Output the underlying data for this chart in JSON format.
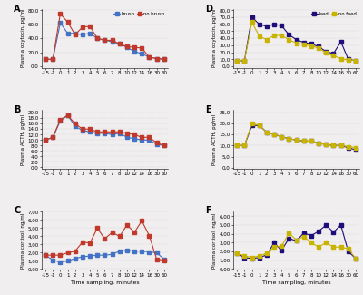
{
  "x_ticks_labels": [
    "-15",
    "-1",
    "0",
    "1",
    "2",
    "3",
    "4",
    "5",
    "6",
    "7",
    "8",
    "10",
    "12",
    "14",
    "16",
    "30",
    "60"
  ],
  "A_brush": [
    10,
    10,
    62,
    47,
    47,
    45,
    47,
    40,
    37,
    35,
    32,
    27,
    21,
    18,
    13,
    11,
    10
  ],
  "A_no_brush": [
    10,
    10,
    75,
    63,
    45,
    56,
    57,
    40,
    37,
    37,
    32,
    28,
    27,
    26,
    13,
    11,
    10
  ],
  "B_brush": [
    10,
    11,
    17,
    19,
    15,
    13.5,
    13,
    12.5,
    12.5,
    12,
    12.5,
    11,
    10.5,
    10,
    10,
    8.5,
    8
  ],
  "B_no_brush": [
    10,
    11,
    17.5,
    19,
    16,
    14,
    14,
    13,
    13,
    13,
    13,
    12.5,
    12,
    11,
    11,
    9,
    8
  ],
  "C_brush": [
    1.7,
    1.1,
    0.85,
    1.0,
    1.3,
    1.5,
    1.6,
    1.7,
    1.7,
    1.8,
    2.2,
    2.3,
    2.2,
    2.2,
    2.1,
    2.0,
    1.2
  ],
  "C_no_brush": [
    1.7,
    1.7,
    1.7,
    2.0,
    2.2,
    3.3,
    3.2,
    5.0,
    3.7,
    4.5,
    4.0,
    5.4,
    4.5,
    5.9,
    4.1,
    1.2,
    1.1
  ],
  "D_feed": [
    8,
    8,
    70,
    60,
    57,
    60,
    58,
    45,
    38,
    34,
    32,
    28,
    21,
    18,
    35,
    10,
    8
  ],
  "D_no_feed": [
    8,
    8,
    63,
    43,
    38,
    44,
    44,
    38,
    33,
    31,
    29,
    26,
    19,
    15,
    11,
    9,
    8
  ],
  "E_feed": [
    10,
    10,
    19,
    19,
    16,
    15,
    14,
    13,
    12.5,
    12,
    12,
    11,
    10.5,
    10,
    10,
    9,
    8
  ],
  "E_no_feed": [
    10,
    10,
    20,
    19,
    16,
    15,
    14,
    13,
    12.5,
    12,
    12,
    11,
    10.5,
    10,
    10,
    9.5,
    9
  ],
  "F_feed": [
    1.8,
    1.3,
    1.2,
    1.3,
    1.6,
    3.0,
    2.1,
    3.5,
    3.2,
    4.1,
    3.8,
    4.3,
    5.0,
    4.2,
    5.0,
    2.0,
    1.2
  ],
  "F_no_feed": [
    1.8,
    1.5,
    1.3,
    1.5,
    1.8,
    2.5,
    2.6,
    4.1,
    3.3,
    3.7,
    3.0,
    2.5,
    3.0,
    2.5,
    2.5,
    2.3,
    1.2
  ],
  "color_brush": "#4472c4",
  "color_no_brush": "#c0392b",
  "color_feed": "#1f0e7a",
  "color_no_feed": "#c8b400",
  "bg_color": "#f0eeee",
  "ylabel_A": "Plasma oxytocin, pg/ml",
  "ylabel_B": "Plasma ACTH, pg/ml",
  "ylabel_C": "Plasma cortisol, ng/ml",
  "ylabel_D": "Plasma oxytocin, pg/ml",
  "ylabel_E": "Plasma ACTH, pg/ml",
  "ylabel_F": "Plasma cortisol, ng/ml",
  "xlabel": "Time sampling, minutes",
  "ylim_A": [
    -2,
    82
  ],
  "ylim_B": [
    -0.5,
    21
  ],
  "ylim_C": [
    -0.1,
    7.1
  ],
  "ylim_D": [
    -2,
    82
  ],
  "ylim_E": [
    -0.5,
    26
  ],
  "ylim_F": [
    -0.1,
    6.6
  ],
  "yticks_A": [
    0,
    20,
    40,
    60,
    80
  ],
  "yticks_A_labels": [
    "0,0",
    "20,0",
    "40,0",
    "60,0",
    "80,0"
  ],
  "yticks_B": [
    0,
    2,
    4,
    6,
    8,
    10,
    12,
    14,
    16,
    18,
    20
  ],
  "yticks_B_labels": [
    "0,0",
    "2,0",
    "4,0",
    "6,0",
    "8,0",
    "10,0",
    "12,0",
    "14,0",
    "16,0",
    "18,0",
    "20,0"
  ],
  "yticks_C": [
    0,
    1,
    2,
    3,
    4,
    5,
    6,
    7
  ],
  "yticks_C_labels": [
    "0,00",
    "1,00",
    "2,00",
    "3,00",
    "4,00",
    "5,00",
    "6,00",
    "7,00"
  ],
  "yticks_D": [
    0,
    10,
    20,
    30,
    40,
    50,
    60,
    70,
    80
  ],
  "yticks_D_labels": [
    "0,0",
    "10,0",
    "20,0",
    "30,0",
    "40,0",
    "50,0",
    "60,0",
    "70,0",
    "80,0"
  ],
  "yticks_E": [
    0,
    5,
    10,
    15,
    20,
    25
  ],
  "yticks_E_labels": [
    "0,0",
    "5,0",
    "10,0",
    "15,0",
    "20,0",
    "25,0"
  ],
  "yticks_F": [
    0,
    1,
    2,
    3,
    4,
    5,
    6
  ],
  "yticks_F_labels": [
    "0,00",
    "1,00",
    "2,00",
    "3,00",
    "4,00",
    "5,00",
    "6,00"
  ]
}
